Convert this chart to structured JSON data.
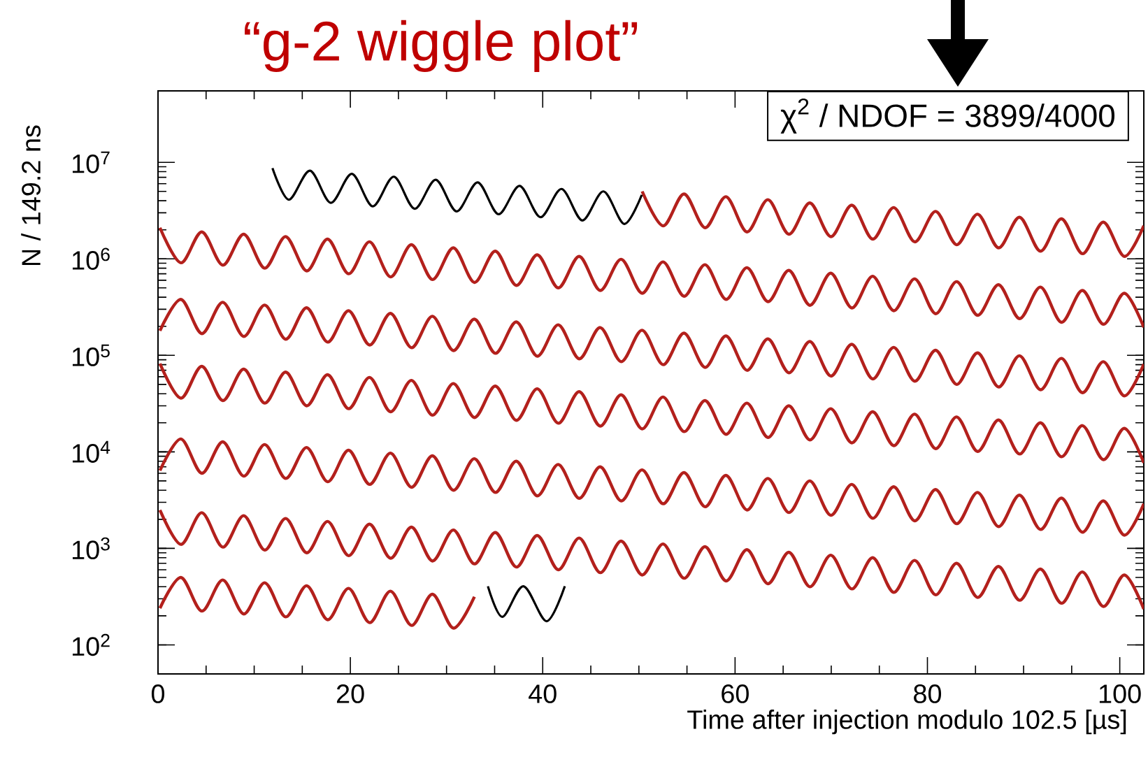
{
  "chart_data": {
    "type": "line",
    "title": "“g-2 wiggle plot”",
    "xlabel": "Time after injection modulo 102.5 [µs]",
    "ylabel": "N / 149.2 ns",
    "annotations": [
      "χ$^{2}$ / NDOF = 3899/4000"
    ],
    "log": true,
    "xlim": [
      0,
      102.5
    ],
    "ylim": [
      50,
      55000000
    ],
    "xticks": [
      0,
      20,
      40,
      60,
      80,
      100
    ],
    "yticks": [
      {
        "value": 100,
        "label": "10$^{2}$"
      },
      {
        "value": 1000,
        "label": "10$^{3}$"
      },
      {
        "value": 10000,
        "label": "10$^{4}$"
      },
      {
        "value": 100000,
        "label": "10$^{5}$"
      },
      {
        "value": 1000000,
        "label": "10$^{6}$"
      },
      {
        "value": 10000000,
        "label": "10$^{7}$"
      }
    ],
    "x": [
      0.2,
      2.38,
      4.56,
      6.74,
      8.92,
      11.1,
      13.28,
      15.46,
      17.64,
      19.82,
      22,
      24.18,
      26.36,
      28.54,
      30.72,
      32.9,
      35.08,
      37.26,
      39.44,
      41.62,
      43.8,
      45.98,
      48.16,
      50.34,
      52.52,
      54.7,
      56.88,
      59.06,
      61.24,
      63.42,
      65.6,
      67.78,
      69.96,
      72.14,
      74.32,
      76.5,
      78.68,
      80.86,
      83.04,
      85.22,
      87.4,
      89.58,
      91.76,
      93.94,
      96.12,
      98.3,
      100.48,
      102.5
    ],
    "series": [
      {
        "color": "#b3201c",
        "x": [
          50.34,
          52.52,
          54.7,
          56.88,
          59.06,
          61.24,
          63.42,
          65.6,
          67.78,
          69.96,
          72.14,
          74.32,
          76.5,
          78.68,
          80.86,
          83.04,
          85.22,
          87.4,
          89.58,
          91.76,
          93.94,
          96.12,
          98.3,
          100.48,
          102.5
        ],
        "values": [
          5000000,
          2200000,
          4700000,
          2100000,
          4400000,
          1900000,
          4100000,
          1800000,
          3800000,
          1700000,
          3600000,
          1600000,
          3400000,
          1500000,
          3100000,
          1400000,
          2900000,
          1300000,
          2700000,
          1200000,
          2600000,
          1130000,
          2400000,
          1060000,
          2200000
        ]
      },
      {
        "color": "#b3201c",
        "values": [
          2100000,
          910000,
          1900000,
          860000,
          1800000,
          800000,
          1700000,
          750000,
          1600000,
          700000,
          1500000,
          650000,
          1400000,
          610000,
          1300000,
          570000,
          1200000,
          530000,
          1100000,
          500000,
          1060000,
          470000,
          990000,
          440000,
          930000,
          410000,
          870000,
          380000,
          810000,
          360000,
          760000,
          330000,
          710000,
          310000,
          660000,
          290000,
          620000,
          270000,
          580000,
          260000,
          540000,
          240000,
          510000,
          220000,
          470000,
          210000,
          440000,
          195000
        ]
      },
      {
        "color": "#b3201c",
        "values": [
          180000,
          380000,
          168000,
          355000,
          157000,
          332000,
          147000,
          311000,
          137000,
          290000,
          128000,
          272000,
          120000,
          254000,
          112000,
          237000,
          105000,
          222000,
          98000,
          207000,
          92000,
          194000,
          86000,
          182000,
          80000,
          170000,
          75000,
          159000,
          70000,
          148000,
          66000,
          139000,
          61000,
          130000,
          57000,
          121000,
          54000,
          113000,
          50000,
          106000,
          47000,
          99000,
          44000,
          93000,
          41000,
          86000,
          38000,
          81000
        ]
      },
      {
        "color": "#b3201c",
        "values": [
          82000,
          36000,
          77000,
          34000,
          72000,
          32000,
          67000,
          30000,
          63000,
          28000,
          59000,
          26000,
          55000,
          24000,
          51000,
          22700,
          48000,
          21200,
          45000,
          19800,
          42000,
          18500,
          39000,
          17300,
          37000,
          16200,
          34000,
          15200,
          32000,
          14100,
          30000,
          13300,
          28000,
          12400,
          26000,
          11600,
          24600,
          10800,
          23000,
          10100,
          21400,
          9500,
          20000,
          8900,
          18700,
          8300,
          17500,
          7700
        ]
      },
      {
        "color": "#b3201c",
        "values": [
          6400,
          13600,
          6000,
          12700,
          5600,
          11900,
          5300,
          11100,
          4900,
          10400,
          4600,
          9700,
          4300,
          9100,
          4000,
          8500,
          3800,
          8000,
          3500,
          7400,
          3300,
          7000,
          3100,
          6500,
          2900,
          6100,
          2700,
          5700,
          2500,
          5300,
          2350,
          5000,
          2200,
          4600,
          2050,
          4350,
          1930,
          4070,
          1800,
          3800,
          1680,
          3560,
          1570,
          3320,
          1470,
          3100,
          1370,
          2900
        ]
      },
      {
        "color": "#b3201c",
        "values": [
          2490,
          1100,
          2340,
          1030,
          2180,
          960,
          2040,
          900,
          1900,
          840,
          1780,
          790,
          1660,
          740,
          1550,
          690,
          1460,
          640,
          1360,
          600,
          1280,
          560,
          1190,
          530,
          1110,
          490,
          1040,
          460,
          970,
          430,
          910,
          400,
          850,
          380,
          800,
          350,
          750,
          330,
          700,
          310,
          650,
          290,
          610,
          270,
          570,
          250,
          530,
          235
        ]
      },
      {
        "color": "#b3201c",
        "x": [
          0.2,
          2.38,
          4.56,
          6.74,
          8.92,
          11.1,
          13.28,
          15.46,
          17.64,
          19.82,
          22,
          24.18,
          26.36,
          28.54,
          30.72,
          32.9
        ],
        "values": [
          240,
          500,
          224,
          470,
          209,
          440,
          195,
          410,
          182,
          385,
          170,
          360,
          159,
          335,
          149,
          315
        ]
      },
      {
        "color": "#000000",
        "x": [
          11.9,
          13.6,
          15.8,
          17.96,
          20.16,
          22.32,
          24.52,
          26.68,
          28.88,
          31.04,
          33.24,
          35.4,
          37.6,
          39.76,
          41.96,
          44.12,
          46.32,
          48.48,
          50.3
        ],
        "values": [
          8700000,
          4100000,
          8200000,
          3800000,
          7600000,
          3500000,
          7100000,
          3300000,
          6600000,
          3100000,
          6200000,
          2900000,
          5700000,
          2700000,
          5300000,
          2500000,
          5000000,
          2300000,
          4600000
        ]
      },
      {
        "color": "#000000",
        "x": [
          34.3,
          35.8,
          38.0,
          40.4,
          42.3
        ],
        "values": [
          405,
          195,
          405,
          176,
          405
        ]
      }
    ]
  }
}
